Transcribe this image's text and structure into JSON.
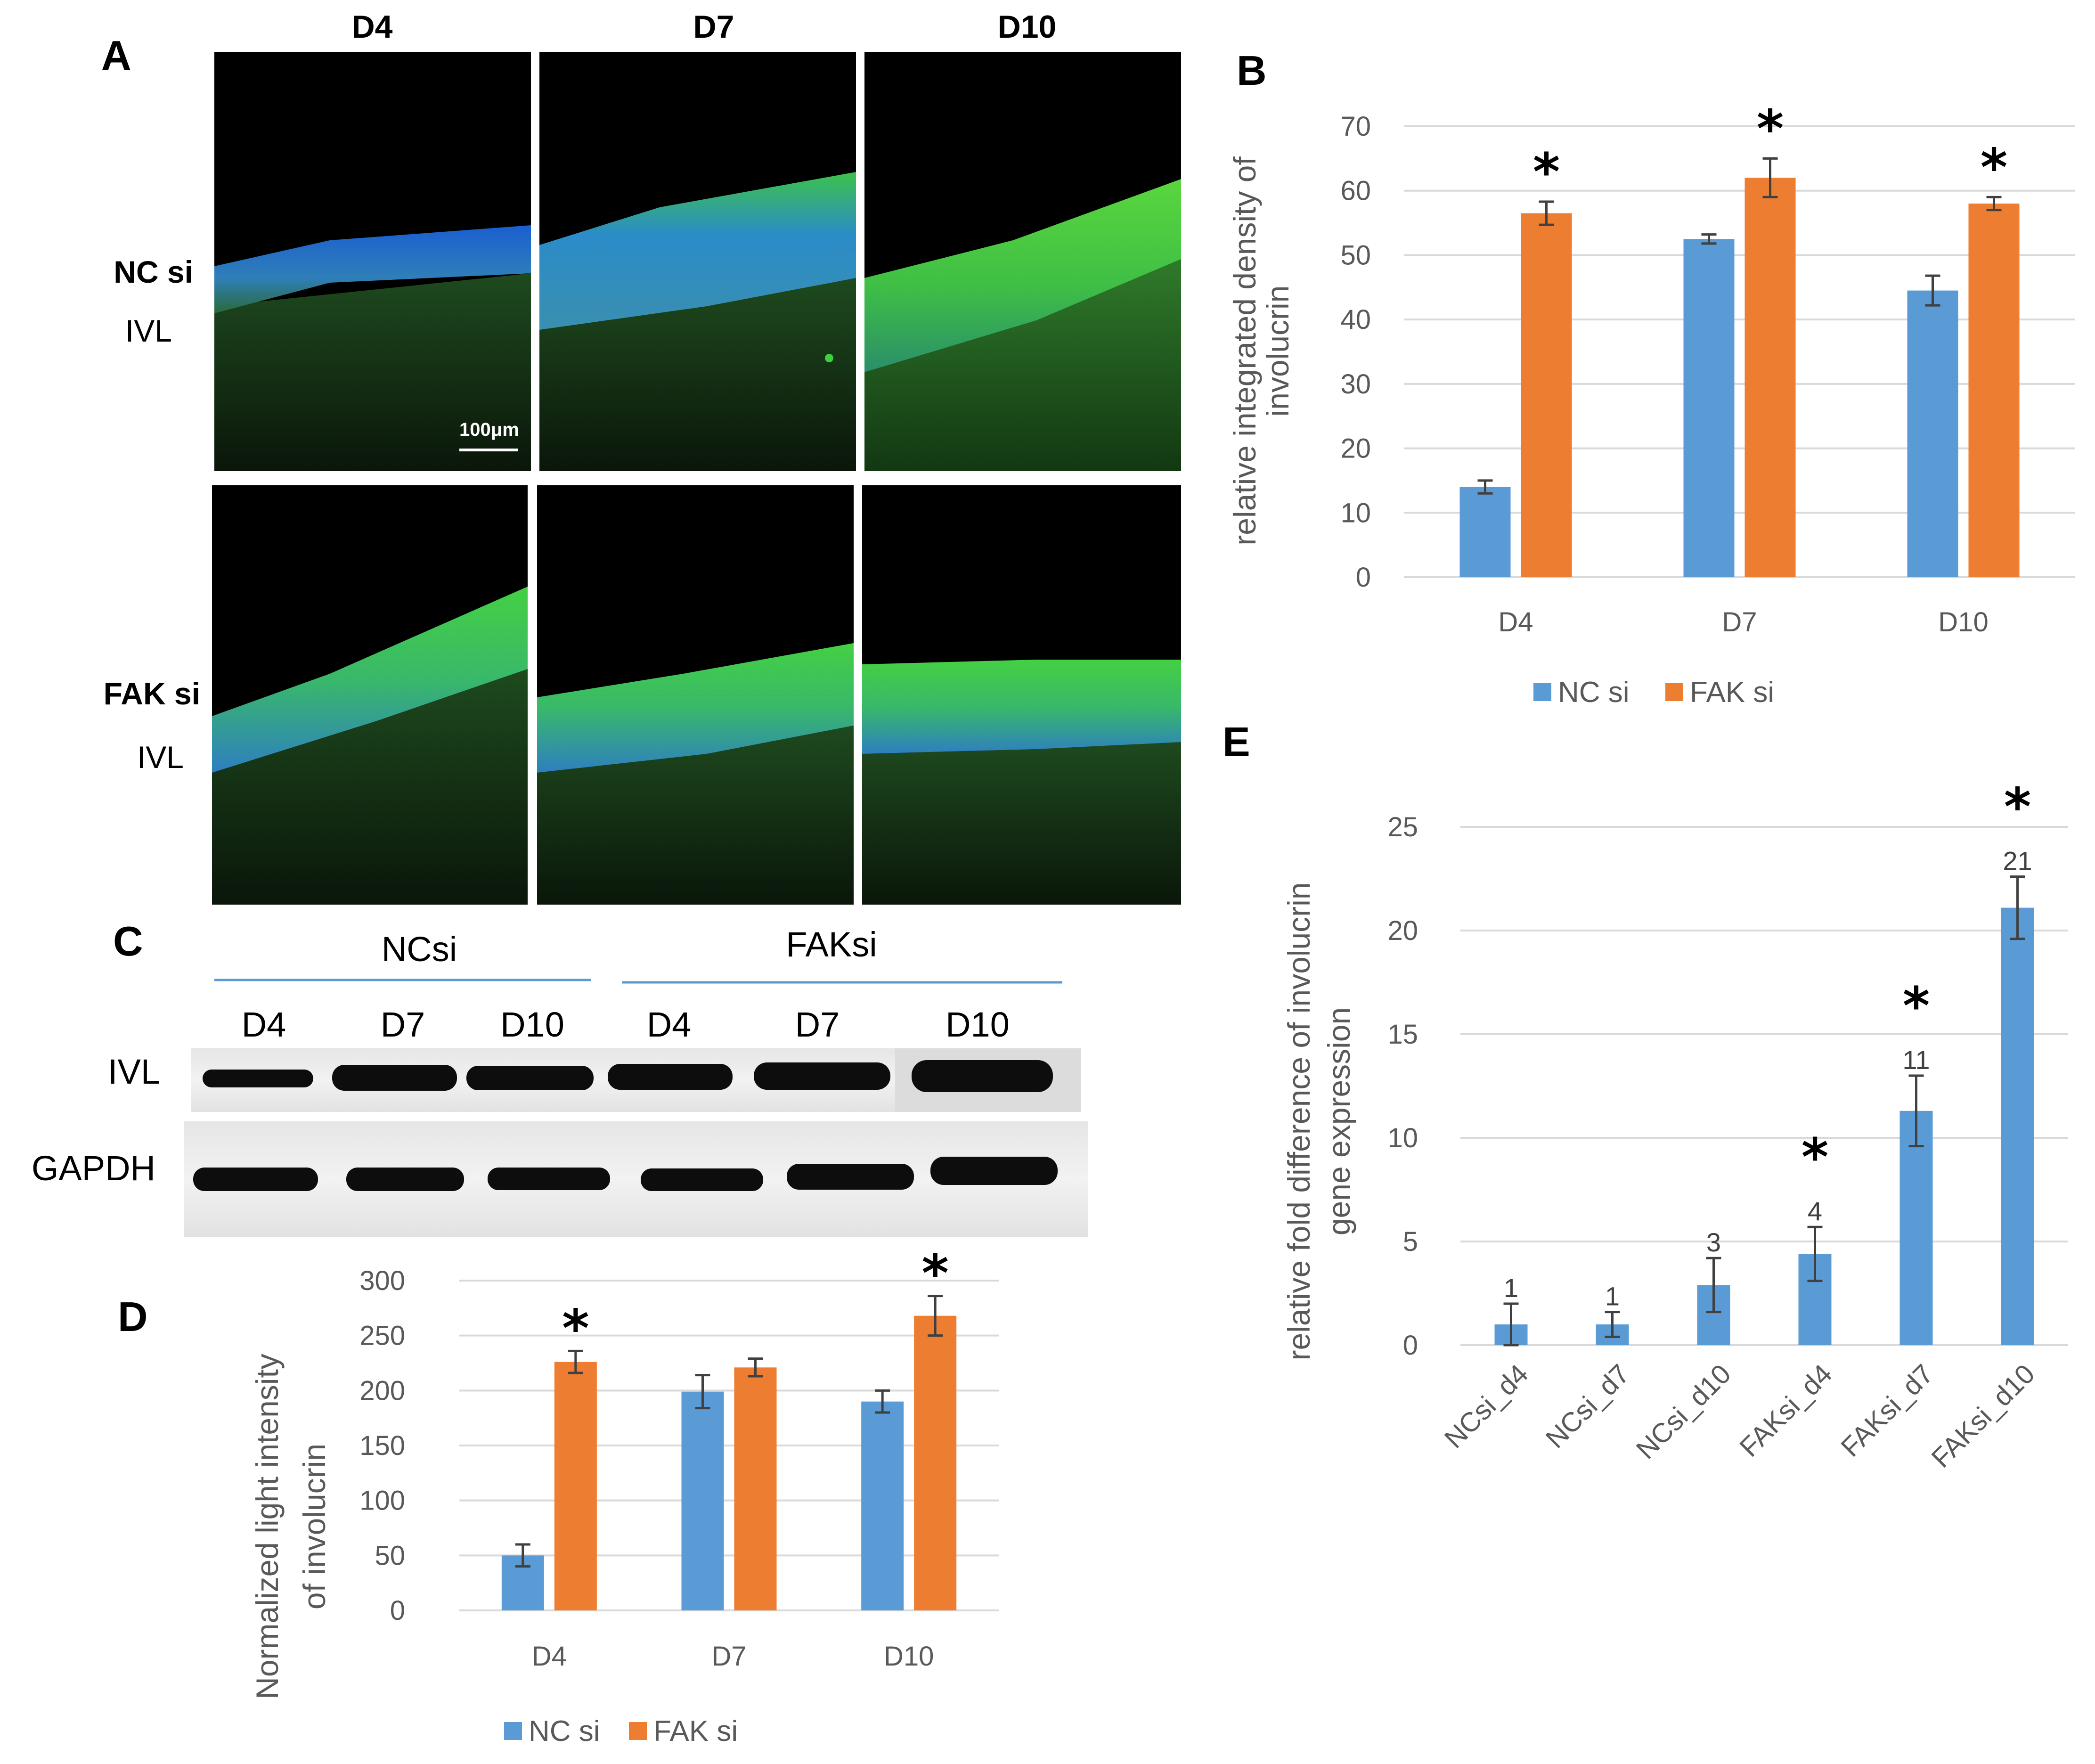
{
  "colors": {
    "nc": "#5b9bd5",
    "fak": "#ed7d31",
    "grid": "#d9d9d9",
    "axis_text": "#595959"
  },
  "panel_a": {
    "letter": "A",
    "columns": [
      "D4",
      "D7",
      "D10"
    ],
    "rows": [
      {
        "name": "NC si",
        "stain": "IVL"
      },
      {
        "name": "FAK si",
        "stain": "IVL"
      }
    ],
    "scale_bar": "100μm"
  },
  "panel_c": {
    "letter": "C",
    "groups": [
      "NCsi",
      "FAKsi"
    ],
    "lanes": [
      "D4",
      "D7",
      "D10",
      "D4",
      "D7",
      "D10"
    ],
    "rows": [
      "IVL",
      "GAPDH"
    ]
  },
  "chart_data": [
    {
      "id": "B",
      "letter": "B",
      "type": "bar",
      "categories": [
        "D4",
        "D7",
        "D10"
      ],
      "series": [
        {
          "name": "NC si",
          "values": [
            14,
            52.5,
            44.5
          ],
          "errors": [
            1,
            0.7,
            2.3
          ]
        },
        {
          "name": "FAK si",
          "values": [
            56.5,
            62,
            58
          ],
          "errors": [
            1.8,
            3,
            1
          ]
        }
      ],
      "ylabel": "relative integrated density of involucrin",
      "ylabel_lines": [
        "relative integrated density of",
        "involucrin"
      ],
      "ylim": [
        0,
        70
      ],
      "yticks": [
        0,
        10,
        20,
        30,
        40,
        50,
        60,
        70
      ],
      "significance": [
        "*",
        "*",
        "*"
      ],
      "legend": [
        "NC si",
        "FAK si"
      ]
    },
    {
      "id": "D",
      "letter": "D",
      "type": "bar",
      "categories": [
        "D4",
        "D7",
        "D10"
      ],
      "series": [
        {
          "name": "NC si",
          "values": [
            50,
            199,
            190
          ],
          "errors": [
            10,
            15,
            10
          ]
        },
        {
          "name": "FAK si",
          "values": [
            226,
            221,
            268
          ],
          "errors": [
            10,
            8,
            18
          ]
        }
      ],
      "ylabel": "Normalized light intensity of involucrin",
      "ylabel_lines": [
        "Normalized light intensity",
        "of involucrin"
      ],
      "ylim": [
        0,
        300
      ],
      "yticks": [
        0,
        50,
        100,
        150,
        200,
        250,
        300
      ],
      "significance": [
        "*",
        "",
        "*"
      ],
      "legend": [
        "NC si",
        "FAK si"
      ]
    },
    {
      "id": "E",
      "letter": "E",
      "type": "bar",
      "categories": [
        "NCsi_d4",
        "NCsi_d7",
        "NCsi_d10",
        "FAKsi_d4",
        "FAKsi_d7",
        "FAKsi_d10"
      ],
      "series": [
        {
          "name": "relative fold difference",
          "values": [
            1,
            1,
            2.9,
            4.4,
            11.3,
            21.1
          ],
          "errors": [
            1,
            0.6,
            1.3,
            1.3,
            1.7,
            1.5
          ]
        }
      ],
      "data_labels": [
        "1",
        "1",
        "3",
        "4",
        "11",
        "21"
      ],
      "ylabel": "relative fold difference of involucrin gene expression",
      "ylabel_lines": [
        "relative fold difference of involucrin",
        "gene expression"
      ],
      "ylim": [
        0,
        25
      ],
      "yticks": [
        0,
        5,
        10,
        15,
        20,
        25
      ],
      "significance": [
        "",
        "",
        "",
        "*",
        "*",
        "*"
      ]
    }
  ]
}
